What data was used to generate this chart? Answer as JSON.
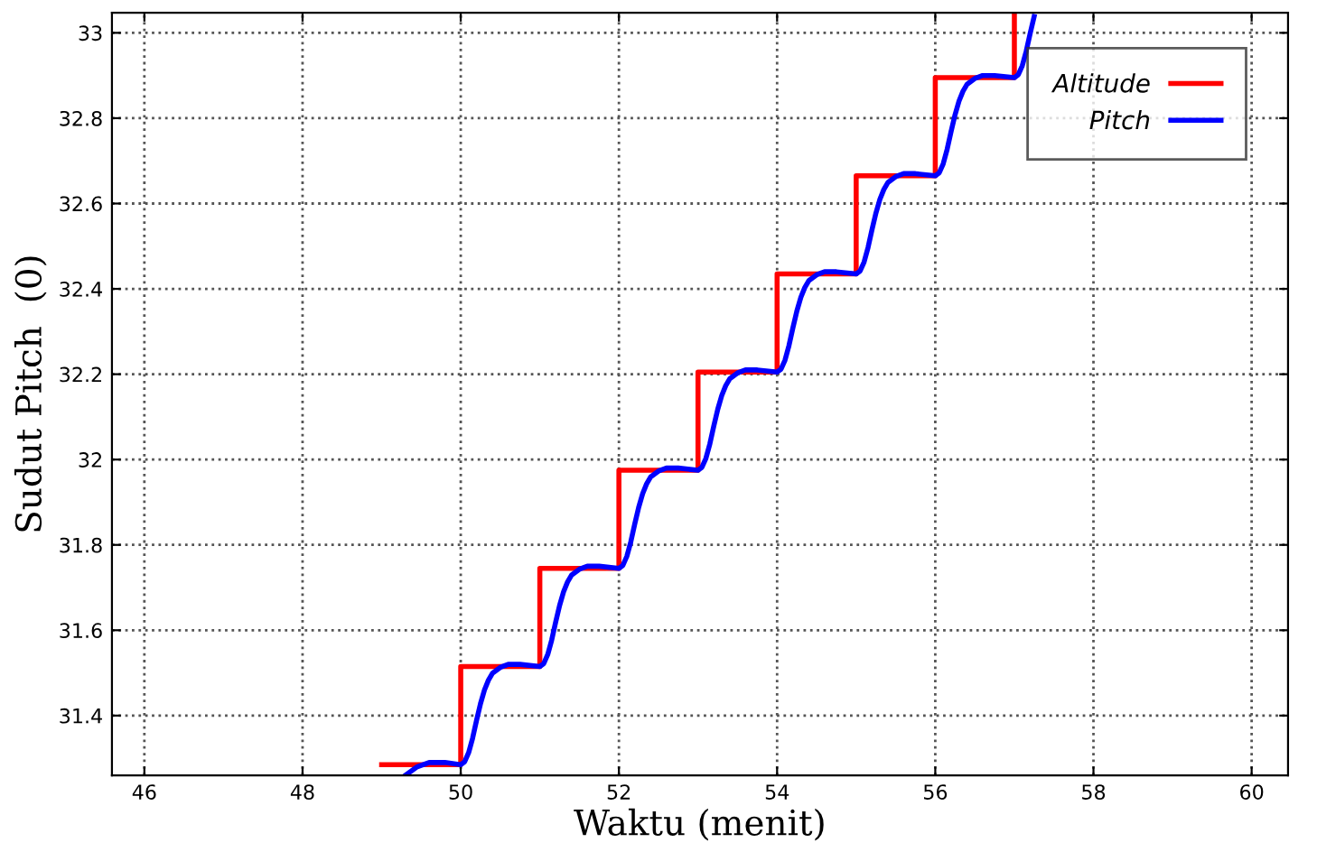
{
  "chart_data": {
    "type": "line",
    "xlabel": "Waktu (menit)",
    "ylabel": "Sudut Pitch  (0)",
    "xlim": [
      45.59,
      60.46
    ],
    "ylim": [
      31.26,
      33.047
    ],
    "xticks": [
      46,
      48,
      50,
      52,
      54,
      56,
      58,
      60
    ],
    "yticks": [
      31.4,
      31.6,
      31.8,
      32,
      32.2,
      32.4,
      32.6,
      32.8,
      33
    ],
    "grid": true,
    "legend": "top right",
    "line_style": "solid",
    "marker": "none",
    "series": [
      {
        "name": "Altitude",
        "type": "step",
        "color": "#ff0000",
        "x": [
          49,
          50,
          51,
          52,
          53,
          54,
          55,
          56,
          57
        ],
        "values": [
          31.285,
          31.515,
          31.745,
          31.975,
          32.205,
          32.435,
          32.665,
          32.895,
          33.04
        ]
      },
      {
        "name": "Pitch",
        "color": "#0000ff",
        "x": [
          49.3,
          49.45,
          49.6,
          49.8,
          50.0,
          50.05,
          50.1,
          50.15,
          50.2,
          50.25,
          50.3,
          50.35,
          50.4,
          50.5,
          50.6,
          50.75,
          51.0,
          51.05,
          51.1,
          51.15,
          51.2,
          51.25,
          51.3,
          51.35,
          51.4,
          51.5,
          51.6,
          51.75,
          52.0,
          52.05,
          52.1,
          52.15,
          52.2,
          52.25,
          52.3,
          52.35,
          52.4,
          52.5,
          52.6,
          52.75,
          53.0,
          53.05,
          53.1,
          53.15,
          53.2,
          53.25,
          53.3,
          53.35,
          53.4,
          53.5,
          53.6,
          53.75,
          54.0,
          54.05,
          54.1,
          54.15,
          54.2,
          54.25,
          54.3,
          54.35,
          54.4,
          54.5,
          54.6,
          54.75,
          55.0,
          55.05,
          55.1,
          55.15,
          55.2,
          55.25,
          55.3,
          55.35,
          55.4,
          55.5,
          55.6,
          55.75,
          56.0,
          56.05,
          56.1,
          56.15,
          56.2,
          56.25,
          56.3,
          56.35,
          56.4,
          56.5,
          56.6,
          56.75,
          57.0,
          57.05,
          57.1,
          57.15,
          57.2,
          57.25
        ],
        "values": [
          31.26,
          31.28,
          31.29,
          31.29,
          31.285,
          31.292,
          31.313,
          31.347,
          31.389,
          31.428,
          31.46,
          31.483,
          31.499,
          31.513,
          31.52,
          31.52,
          31.515,
          31.522,
          31.543,
          31.577,
          31.619,
          31.658,
          31.69,
          31.713,
          31.729,
          31.743,
          31.75,
          31.75,
          31.745,
          31.752,
          31.773,
          31.807,
          31.849,
          31.888,
          31.92,
          31.943,
          31.959,
          31.973,
          31.98,
          31.98,
          31.975,
          31.982,
          32.003,
          32.037,
          32.079,
          32.118,
          32.15,
          32.173,
          32.189,
          32.203,
          32.21,
          32.21,
          32.205,
          32.212,
          32.233,
          32.267,
          32.309,
          32.348,
          32.38,
          32.403,
          32.419,
          32.433,
          32.44,
          32.44,
          32.435,
          32.442,
          32.463,
          32.497,
          32.539,
          32.578,
          32.61,
          32.633,
          32.649,
          32.663,
          32.67,
          32.67,
          32.665,
          32.672,
          32.693,
          32.727,
          32.769,
          32.808,
          32.84,
          32.863,
          32.879,
          32.893,
          32.9,
          32.9,
          32.895,
          32.902,
          32.923,
          32.957,
          32.999,
          33.038
        ]
      }
    ]
  }
}
